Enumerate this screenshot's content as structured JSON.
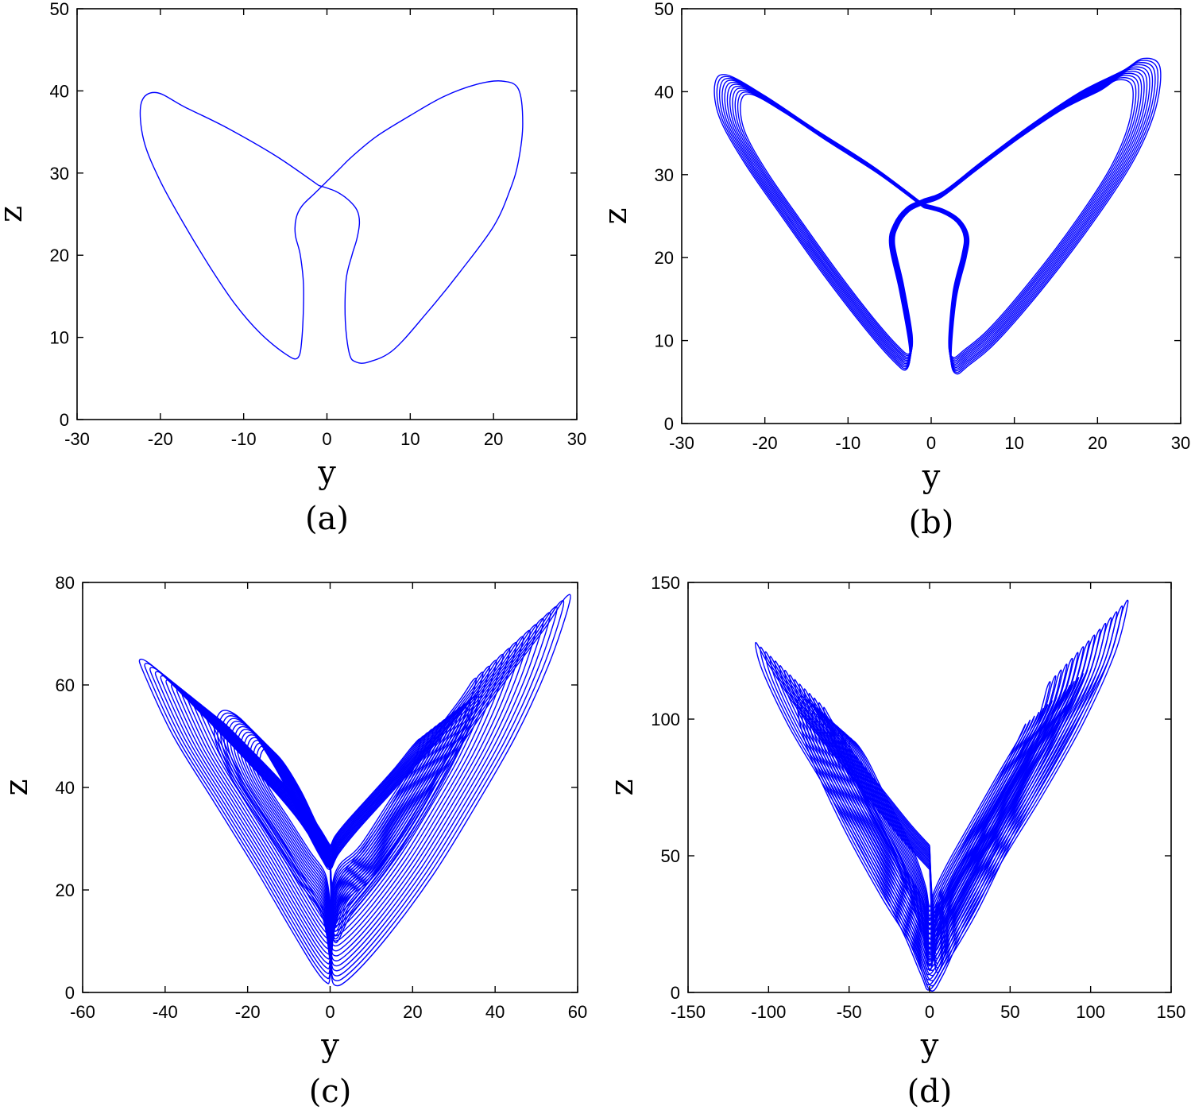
{
  "chart_data": [
    {
      "type": "line",
      "panel_label": "(a)",
      "xlabel": "y",
      "ylabel": "z",
      "xlim": [
        -30,
        30
      ],
      "ylim": [
        0,
        50
      ],
      "xticks": [
        "-30",
        "-20",
        "-10",
        "0",
        "10",
        "20",
        "30"
      ],
      "yticks": [
        "0",
        "10",
        "20",
        "30",
        "40",
        "50"
      ],
      "series": [
        {
          "color": "#0000ff",
          "x": [
            -1.0,
            -6.0,
            -12.0,
            -17.0,
            -20.5,
            -22.3,
            -22.0,
            -20.0,
            -17.0,
            -14.0,
            -11.0,
            -8.0,
            -5.0,
            -3.5,
            -3.0,
            -2.8,
            -3.2,
            -3.8,
            -3.7,
            -3.0,
            -1.5,
            0.0,
            1.5,
            3.0,
            6.0,
            10.0,
            14.0,
            18.0,
            21.0,
            23.0,
            23.5,
            23.0,
            22.0,
            20.0,
            16.0,
            12.0,
            8.0,
            5.0,
            3.5,
            2.7,
            2.2,
            2.3,
            3.0,
            3.6,
            3.9,
            3.6,
            2.5,
            1.0,
            -1.0
          ],
          "y": [
            28.5,
            32.0,
            35.5,
            38.0,
            39.8,
            38.5,
            34.0,
            29.0,
            23.5,
            18.5,
            14.0,
            10.5,
            8.0,
            7.5,
            10.0,
            16.0,
            20.0,
            22.5,
            24.5,
            26.0,
            27.5,
            29.0,
            30.5,
            32.0,
            34.5,
            37.0,
            39.3,
            40.8,
            41.2,
            40.2,
            36.0,
            31.5,
            28.0,
            23.5,
            18.0,
            13.0,
            8.5,
            7.0,
            7.0,
            8.0,
            12.0,
            17.0,
            20.0,
            22.0,
            24.0,
            25.5,
            26.8,
            27.8,
            28.5
          ]
        }
      ]
    },
    {
      "type": "line",
      "panel_label": "(b)",
      "xlabel": "y",
      "ylabel": "z",
      "xlim": [
        -30,
        30
      ],
      "ylim": [
        0,
        50
      ],
      "xticks": [
        "-30",
        "-20",
        "-10",
        "0",
        "10",
        "20",
        "30"
      ],
      "yticks": [
        "0",
        "10",
        "20",
        "30",
        "40",
        "50"
      ],
      "series": [
        {
          "color": "#0000ff",
          "x": [
            -1.0,
            -7.0,
            -14.0,
            -20.0,
            -24.5,
            -26.0,
            -25.5,
            -22.5,
            -18.0,
            -13.0,
            -8.0,
            -4.5,
            -3.0,
            -2.6,
            -3.8,
            -5.0,
            -4.5,
            -3.0,
            -1.0,
            1.5,
            6.0,
            12.0,
            18.0,
            23.0,
            25.5,
            27.5,
            27.0,
            24.5,
            20.0,
            14.0,
            8.0,
            4.5,
            3.0,
            2.4,
            3.0,
            4.2,
            4.5,
            3.5,
            1.5,
            -1.0
          ],
          "y": [
            26.5,
            31.0,
            35.5,
            39.5,
            42.0,
            41.0,
            37.0,
            31.5,
            25.0,
            18.0,
            11.5,
            7.5,
            6.5,
            9.0,
            16.0,
            21.5,
            24.0,
            26.0,
            27.0,
            28.0,
            31.5,
            36.0,
            40.0,
            42.5,
            44.0,
            43.0,
            38.0,
            32.0,
            25.0,
            17.0,
            10.0,
            7.0,
            6.0,
            8.0,
            15.0,
            20.0,
            22.5,
            24.5,
            25.8,
            26.5
          ]
        }
      ]
    },
    {
      "type": "line",
      "panel_label": "(c)",
      "xlabel": "y",
      "ylabel": "z",
      "xlim": [
        -60,
        60
      ],
      "ylim": [
        0,
        80
      ],
      "xticks": [
        "-60",
        "-40",
        "-20",
        "0",
        "20",
        "40",
        "60"
      ],
      "yticks": [
        "0",
        "20",
        "40",
        "60",
        "80"
      ],
      "series": [
        {
          "color": "#0000ff",
          "x": [
            0.0,
            -8.0,
            -20.0,
            -32.0,
            -42.0,
            -46.0,
            -45.0,
            -38.0,
            -28.0,
            -18.0,
            -10.0,
            -4.0,
            -1.0,
            0.0,
            1.0,
            4.0,
            12.0,
            25.0,
            40.0,
            52.0,
            57.0,
            58.0,
            53.0,
            45.0,
            35.0,
            25.0,
            14.0,
            5.0,
            1.0,
            0.0,
            -2.0,
            -8.0,
            -16.0,
            -24.0,
            -28.0,
            -26.0,
            -20.0,
            -12.0,
            -6.0,
            -2.0,
            0.0,
            2.0,
            7.0,
            16.0,
            26.0,
            33.0,
            36.0,
            34.0,
            28.0,
            20.0,
            12.0,
            5.0,
            1.0,
            0.0
          ],
          "y": [
            24.0,
            34.0,
            45.0,
            55.0,
            63.0,
            65.0,
            62.0,
            50.0,
            37.0,
            24.0,
            13.0,
            5.0,
            2.0,
            3.0,
            12.0,
            18.0,
            24.0,
            40.0,
            58.0,
            71.0,
            77.0,
            76.0,
            64.0,
            50.0,
            36.0,
            23.0,
            11.0,
            3.0,
            1.5,
            6.0,
            15.0,
            22.0,
            32.0,
            42.0,
            50.0,
            55.0,
            52.0,
            42.0,
            32.0,
            26.0,
            24.0,
            27.0,
            32.0,
            40.0,
            49.0,
            56.0,
            58.0,
            52.0,
            42.0,
            31.0,
            22.0,
            15.0,
            10.0,
            24.0
          ]
        }
      ]
    },
    {
      "type": "line",
      "panel_label": "(d)",
      "xlabel": "y",
      "ylabel": "z",
      "xlim": [
        -150,
        150
      ],
      "ylim": [
        0,
        150
      ],
      "xticks": [
        "-150",
        "-100",
        "-50",
        "0",
        "50",
        "100",
        "150"
      ],
      "yticks": [
        "0",
        "50",
        "100",
        "150"
      ],
      "series": [
        {
          "color": "#0000ff",
          "x": [
            0.0,
            -20.0,
            -50.0,
            -80.0,
            -100.0,
            -108.0,
            -104.0,
            -88.0,
            -68.0,
            -48.0,
            -30.0,
            -15.0,
            -5.0,
            0.0,
            10.0,
            30.0,
            55.0,
            85.0,
            110.0,
            120.0,
            123.0,
            115.0,
            95.0,
            70.0,
            45.0,
            22.0,
            8.0,
            0.0,
            -10.0,
            -30.0,
            -55.0,
            -75.0,
            -82.0,
            -78.0,
            -65.0,
            -48.0,
            -30.0,
            -14.0,
            -4.0,
            0.0,
            5.0,
            20.0,
            45.0,
            70.0,
            92.0,
            98.0,
            90.0,
            72.0,
            50.0,
            30.0,
            14.0,
            4.0,
            0.0
          ],
          "y": [
            45.0,
            58.0,
            80.0,
            102.0,
            120.0,
            128.0,
            118.0,
            98.0,
            78.0,
            58.0,
            38.0,
            20.0,
            6.0,
            1.0,
            10.0,
            30.0,
            60.0,
            92.0,
            120.0,
            140.0,
            142.0,
            124.0,
            98.0,
            72.0,
            48.0,
            24.0,
            6.0,
            1.0,
            16.0,
            35.0,
            62.0,
            88.0,
            104.0,
            108.0,
            98.0,
            78.0,
            58.0,
            38.0,
            20.0,
            8.0,
            18.0,
            36.0,
            62.0,
            88.0,
            110.0,
            118.0,
            108.0,
            86.0,
            62.0,
            40.0,
            22.0,
            8.0,
            45.0
          ]
        }
      ]
    }
  ]
}
